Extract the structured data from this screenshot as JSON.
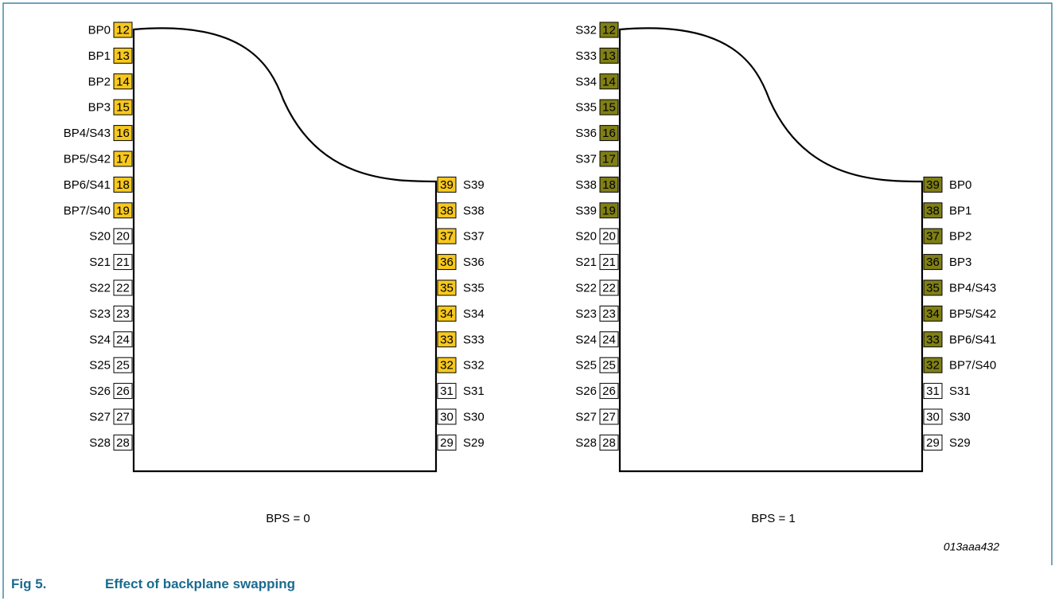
{
  "colors": {
    "border": "#1a6b8f",
    "caption": "#1a6b8f",
    "pin_bps0": "#f7c81e",
    "pin_bps1": "#7f7f16",
    "pin_plain": "#ffffff"
  },
  "drawing_id": "013aaa432",
  "caption": {
    "number": "Fig 5.",
    "title": "Effect of backplane swapping"
  },
  "chips": [
    {
      "label": "BPS = 0",
      "fill": "pin_bps0",
      "left_pins": [
        {
          "num": "12",
          "signal": "BP0",
          "highlight": true
        },
        {
          "num": "13",
          "signal": "BP1",
          "highlight": true
        },
        {
          "num": "14",
          "signal": "BP2",
          "highlight": true
        },
        {
          "num": "15",
          "signal": "BP3",
          "highlight": true
        },
        {
          "num": "16",
          "signal": "BP4/S43",
          "highlight": true
        },
        {
          "num": "17",
          "signal": "BP5/S42",
          "highlight": true
        },
        {
          "num": "18",
          "signal": "BP6/S41",
          "highlight": true
        },
        {
          "num": "19",
          "signal": "BP7/S40",
          "highlight": true
        },
        {
          "num": "20",
          "signal": "S20",
          "highlight": false
        },
        {
          "num": "21",
          "signal": "S21",
          "highlight": false
        },
        {
          "num": "22",
          "signal": "S22",
          "highlight": false
        },
        {
          "num": "23",
          "signal": "S23",
          "highlight": false
        },
        {
          "num": "24",
          "signal": "S24",
          "highlight": false
        },
        {
          "num": "25",
          "signal": "S25",
          "highlight": false
        },
        {
          "num": "26",
          "signal": "S26",
          "highlight": false
        },
        {
          "num": "27",
          "signal": "S27",
          "highlight": false
        },
        {
          "num": "28",
          "signal": "S28",
          "highlight": false
        }
      ],
      "right_pins": [
        {
          "num": "39",
          "signal": "S39",
          "highlight": true
        },
        {
          "num": "38",
          "signal": "S38",
          "highlight": true
        },
        {
          "num": "37",
          "signal": "S37",
          "highlight": true
        },
        {
          "num": "36",
          "signal": "S36",
          "highlight": true
        },
        {
          "num": "35",
          "signal": "S35",
          "highlight": true
        },
        {
          "num": "34",
          "signal": "S34",
          "highlight": true
        },
        {
          "num": "33",
          "signal": "S33",
          "highlight": true
        },
        {
          "num": "32",
          "signal": "S32",
          "highlight": true
        },
        {
          "num": "31",
          "signal": "S31",
          "highlight": false
        },
        {
          "num": "30",
          "signal": "S30",
          "highlight": false
        },
        {
          "num": "29",
          "signal": "S29",
          "highlight": false
        }
      ]
    },
    {
      "label": "BPS = 1",
      "fill": "pin_bps1",
      "left_pins": [
        {
          "num": "12",
          "signal": "S32",
          "highlight": true
        },
        {
          "num": "13",
          "signal": "S33",
          "highlight": true
        },
        {
          "num": "14",
          "signal": "S34",
          "highlight": true
        },
        {
          "num": "15",
          "signal": "S35",
          "highlight": true
        },
        {
          "num": "16",
          "signal": "S36",
          "highlight": true
        },
        {
          "num": "17",
          "signal": "S37",
          "highlight": true
        },
        {
          "num": "18",
          "signal": "S38",
          "highlight": true
        },
        {
          "num": "19",
          "signal": "S39",
          "highlight": true
        },
        {
          "num": "20",
          "signal": "S20",
          "highlight": false
        },
        {
          "num": "21",
          "signal": "S21",
          "highlight": false
        },
        {
          "num": "22",
          "signal": "S22",
          "highlight": false
        },
        {
          "num": "23",
          "signal": "S23",
          "highlight": false
        },
        {
          "num": "24",
          "signal": "S24",
          "highlight": false
        },
        {
          "num": "25",
          "signal": "S25",
          "highlight": false
        },
        {
          "num": "26",
          "signal": "S26",
          "highlight": false
        },
        {
          "num": "27",
          "signal": "S27",
          "highlight": false
        },
        {
          "num": "28",
          "signal": "S28",
          "highlight": false
        }
      ],
      "right_pins": [
        {
          "num": "39",
          "signal": "BP0",
          "highlight": true
        },
        {
          "num": "38",
          "signal": "BP1",
          "highlight": true
        },
        {
          "num": "37",
          "signal": "BP2",
          "highlight": true
        },
        {
          "num": "36",
          "signal": "BP3",
          "highlight": true
        },
        {
          "num": "35",
          "signal": "BP4/S43",
          "highlight": true
        },
        {
          "num": "34",
          "signal": "BP5/S42",
          "highlight": true
        },
        {
          "num": "33",
          "signal": "BP6/S41",
          "highlight": true
        },
        {
          "num": "32",
          "signal": "BP7/S40",
          "highlight": true
        },
        {
          "num": "31",
          "signal": "S31",
          "highlight": false
        },
        {
          "num": "30",
          "signal": "S30",
          "highlight": false
        },
        {
          "num": "29",
          "signal": "S29",
          "highlight": false
        }
      ]
    }
  ]
}
